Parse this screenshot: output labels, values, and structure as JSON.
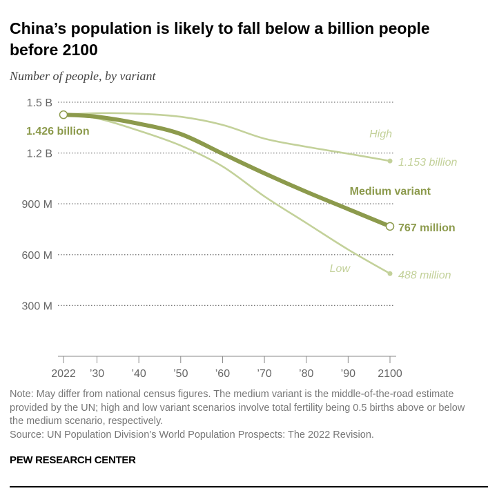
{
  "title": "China’s population is likely to fall below a billion people before 2100",
  "subtitle": "Number of people, by variant",
  "note": "Note: May differ from national census figures. The medium variant is the middle-of-the-road estimate provided by the UN; high and low variant scenarios involve total fertility being 0.5 births above or below the medium scenario, respectively.",
  "source": "Source: UN Population Division’s World Population Prospects: The 2022 Revision.",
  "brand": "PEW RESEARCH CENTER",
  "chart_data": {
    "type": "line",
    "ylim": [
      0,
      1500
    ],
    "yticks": [
      {
        "value": 300,
        "label": "300 M"
      },
      {
        "value": 600,
        "label": "600 M"
      },
      {
        "value": 900,
        "label": "900 M"
      },
      {
        "value": 1200,
        "label": "1.2 B"
      },
      {
        "value": 1500,
        "label": "1.5 B"
      }
    ],
    "xticks": [
      {
        "value": 2022,
        "label": "2022"
      },
      {
        "value": 2030,
        "label": "’30"
      },
      {
        "value": 2040,
        "label": "’40"
      },
      {
        "value": 2050,
        "label": "’50"
      },
      {
        "value": 2060,
        "label": "’60"
      },
      {
        "value": 2070,
        "label": "’70"
      },
      {
        "value": 2080,
        "label": "’80"
      },
      {
        "value": 2090,
        "label": "’90"
      },
      {
        "value": 2100,
        "label": "2100"
      }
    ],
    "grid": true,
    "x": [
      2022,
      2030,
      2040,
      2050,
      2060,
      2070,
      2080,
      2090,
      2100
    ],
    "series": [
      {
        "name": "High",
        "color": "#c3d19a",
        "values": [
          1426,
          1435,
          1432,
          1414,
          1366,
          1285,
          1237,
          1196,
          1153
        ],
        "end_label": "1.153 billion"
      },
      {
        "name": "Low",
        "color": "#c3d19a",
        "values": [
          1426,
          1405,
          1332,
          1244,
          1121,
          944,
          787,
          630,
          488
        ],
        "end_label": "488 million"
      },
      {
        "name": "Medium variant",
        "color": "#8c9a4c",
        "values": [
          1426,
          1414,
          1373,
          1312,
          1196,
          1080,
          971,
          869,
          767
        ],
        "end_label": "767 million"
      }
    ],
    "start_label": "1.426 billion",
    "units": "millions of people"
  }
}
